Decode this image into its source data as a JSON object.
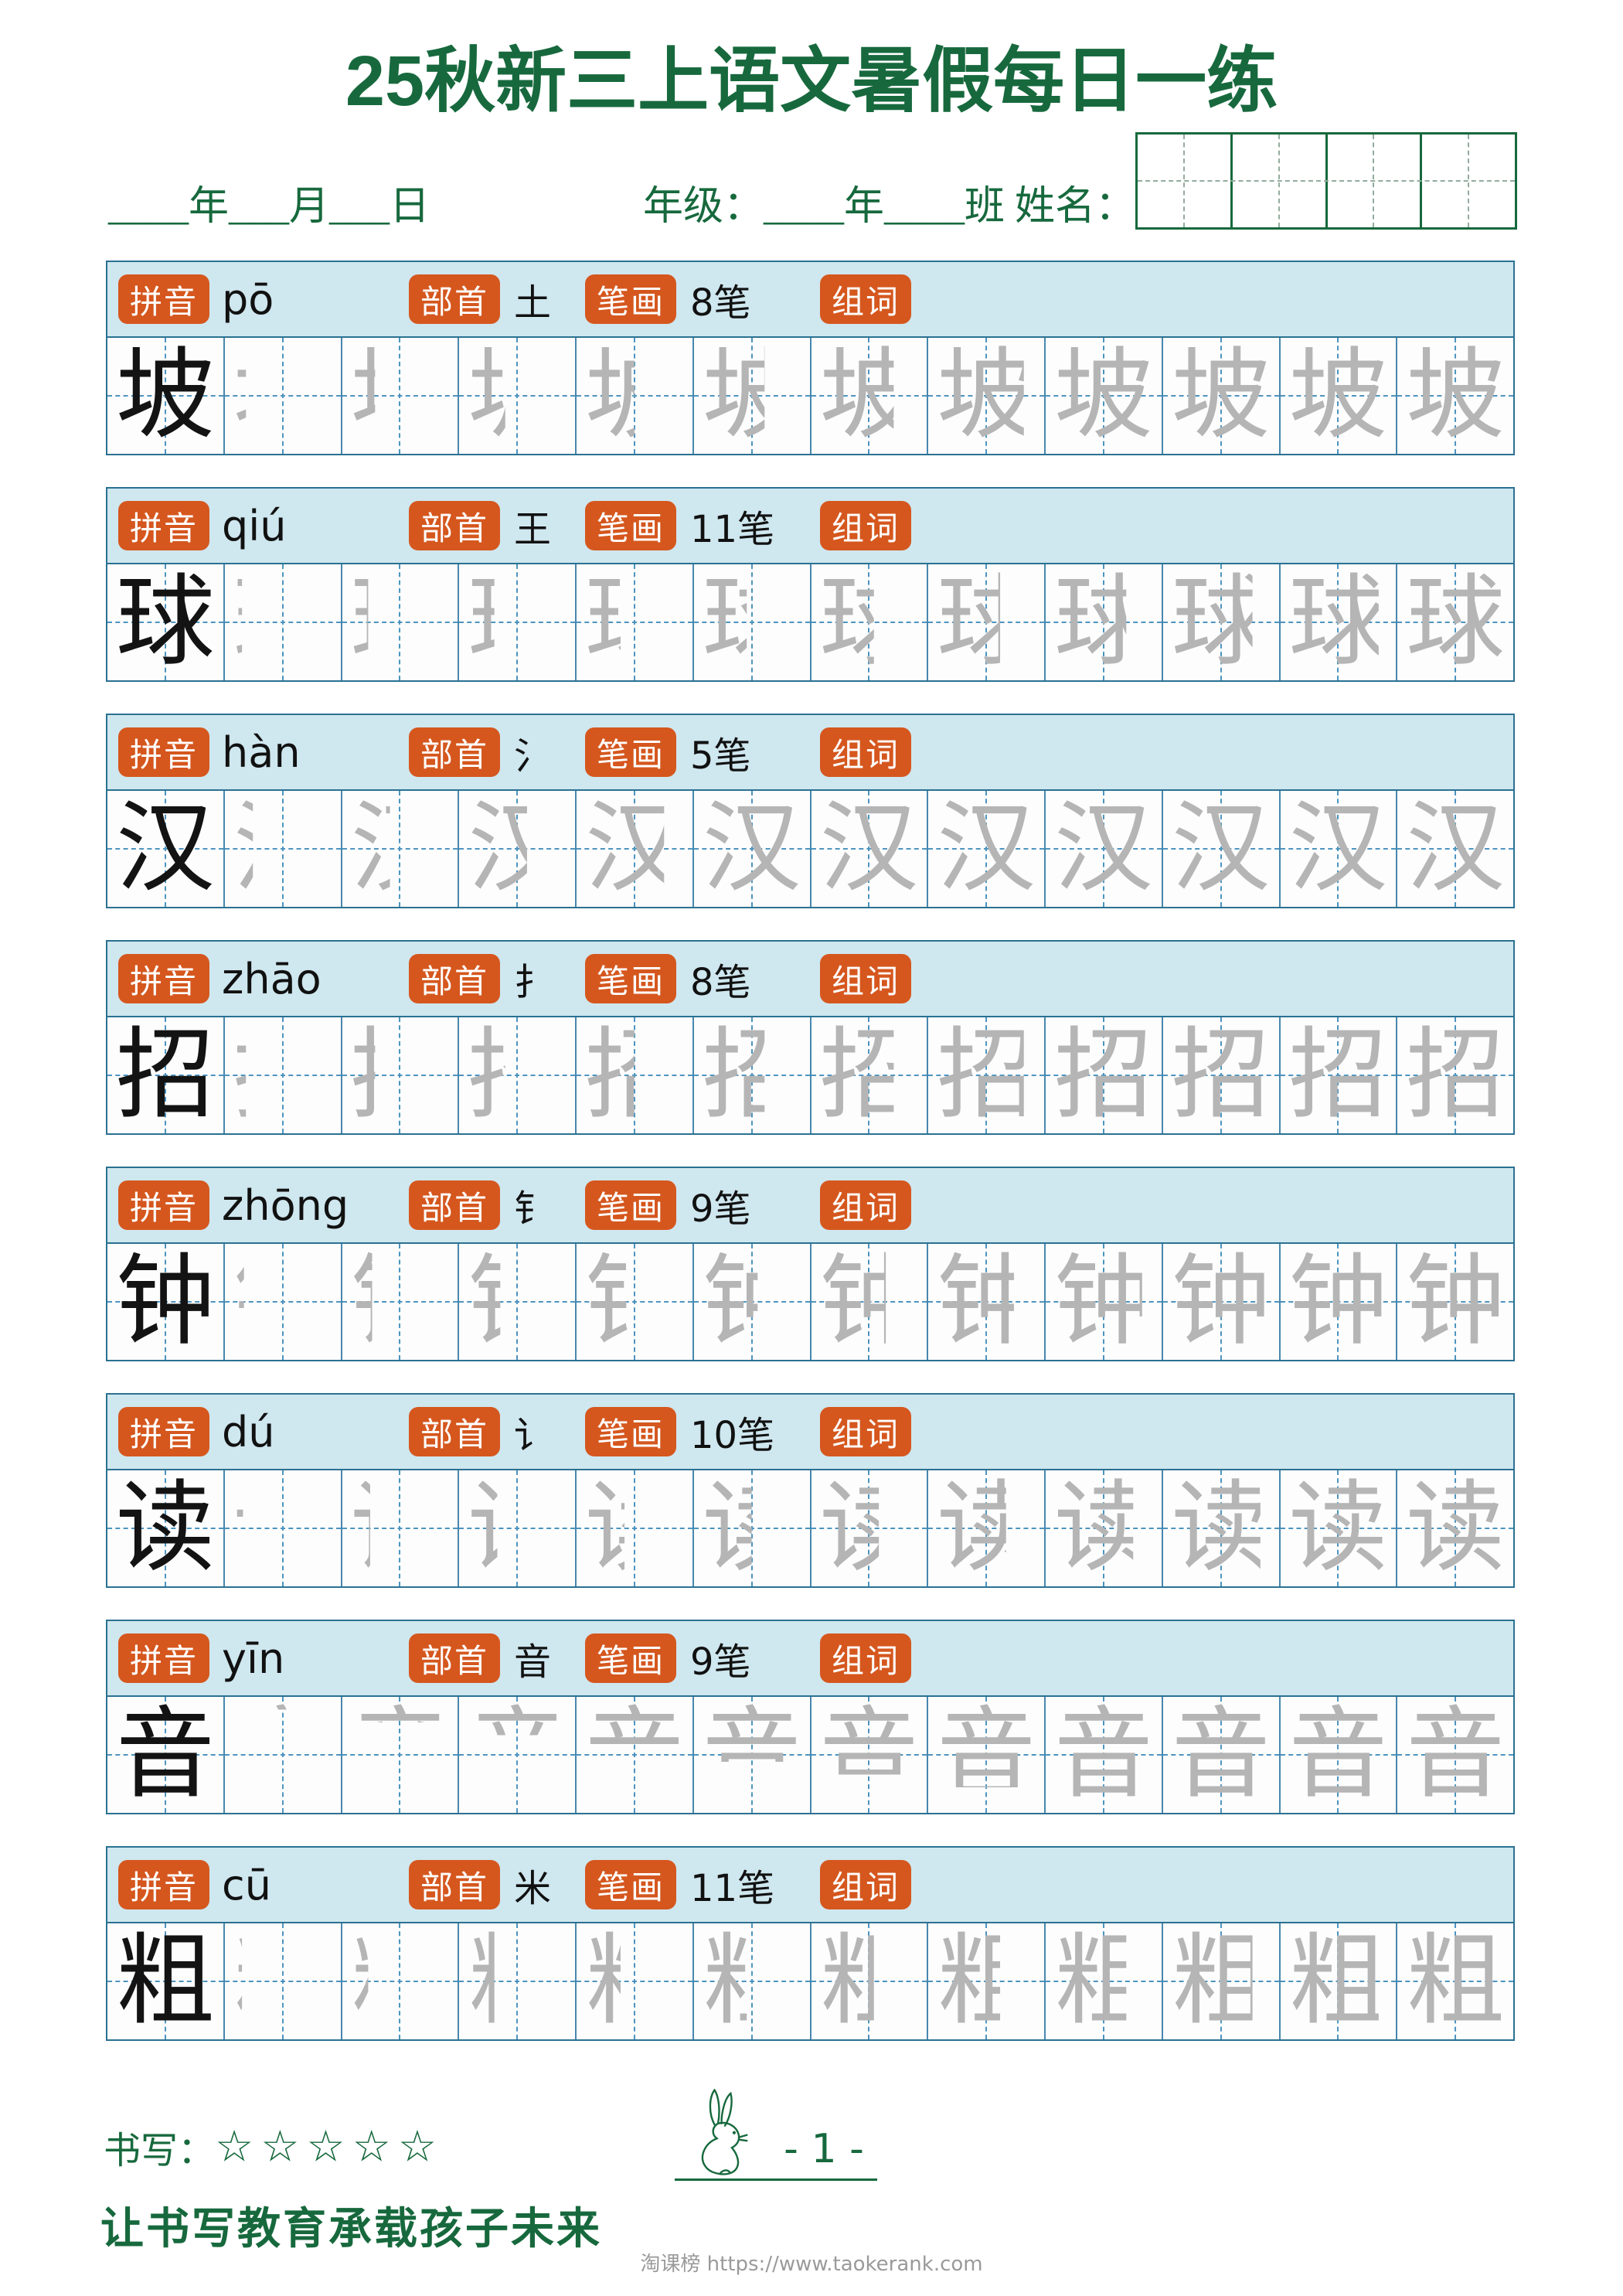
{
  "colors": {
    "green": "#17693d",
    "orange": "#d5571e",
    "headerbg": "#cfe7ef",
    "frame": "#2b7191",
    "cellline": "#4887ae",
    "dashline": "#4d94bf",
    "trace": "#b5b5b5",
    "watermark": "#9a9a9a"
  },
  "header": {
    "title": "25秋新三上语文暑假每日一练",
    "date_line": "____年___月___日",
    "grade_line": "年级：____年____班 姓名：",
    "name_grid_cells": 4
  },
  "labels": {
    "pinyin": "拼音",
    "radical": "部首",
    "strokes": "笔画",
    "words": "组词"
  },
  "rows": [
    {
      "char": "坡",
      "pinyin": "pō",
      "radical": "土",
      "strokes_label": "8笔",
      "strokes": 8,
      "layout": "lr",
      "cells_total": 12
    },
    {
      "char": "球",
      "pinyin": "qiú",
      "radical": "王",
      "strokes_label": "11笔",
      "strokes": 11,
      "layout": "lr",
      "cells_total": 12
    },
    {
      "char": "汉",
      "pinyin": "hàn",
      "radical": "氵",
      "strokes_label": "5笔",
      "strokes": 5,
      "layout": "lr",
      "cells_total": 12
    },
    {
      "char": "招",
      "pinyin": "zhāo",
      "radical": "扌",
      "strokes_label": "8笔",
      "strokes": 8,
      "layout": "lr",
      "cells_total": 12
    },
    {
      "char": "钟",
      "pinyin": "zhōng",
      "radical": "钅",
      "strokes_label": "9笔",
      "strokes": 9,
      "layout": "lr",
      "cells_total": 12
    },
    {
      "char": "读",
      "pinyin": "dú",
      "radical": "讠",
      "strokes_label": "10笔",
      "strokes": 10,
      "layout": "lr",
      "cells_total": 12
    },
    {
      "char": "音",
      "pinyin": "yīn",
      "radical": "音",
      "strokes_label": "9笔",
      "strokes": 9,
      "layout": "tb",
      "cells_total": 12
    },
    {
      "char": "粗",
      "pinyin": "cū",
      "radical": "米",
      "strokes_label": "11笔",
      "strokes": 11,
      "layout": "lr",
      "cells_total": 12
    }
  ],
  "footer": {
    "rating_label": "书写：",
    "rating_stars": "☆☆☆☆☆",
    "page_number": "- 1 -",
    "slogan": "让书写教育承载孩子未来",
    "watermark": "淘课榜 https://www.taokerank.com",
    "rabbit_icon": "rabbit-outline"
  }
}
